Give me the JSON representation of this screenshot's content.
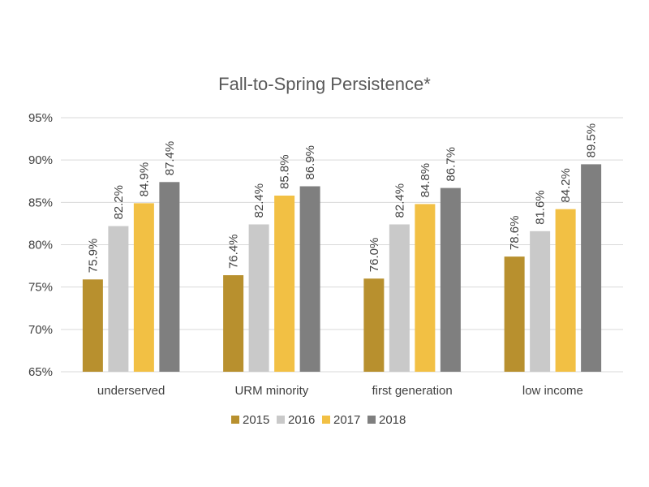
{
  "chart_data": {
    "type": "bar",
    "title": "Fall-to-Spring Persistence*",
    "xlabel": "",
    "ylabel": "",
    "ylim": [
      65,
      95
    ],
    "y_ticks": [
      "65%",
      "70%",
      "75%",
      "80%",
      "85%",
      "90%",
      "95%"
    ],
    "y_tick_values": [
      65,
      70,
      75,
      80,
      85,
      90,
      95
    ],
    "grid": true,
    "legend_position": "bottom",
    "categories": [
      "underserved",
      "URM minority",
      "first generation",
      "low income"
    ],
    "series": [
      {
        "name": "2015",
        "color": "#B8902E",
        "values": [
          75.9,
          76.4,
          76.0,
          78.6
        ],
        "labels": [
          "75.9%",
          "76.4%",
          "76.0%",
          "78.6%"
        ]
      },
      {
        "name": "2016",
        "color": "#C9C9C9",
        "values": [
          82.2,
          82.4,
          82.4,
          81.6
        ],
        "labels": [
          "82.2%",
          "82.4%",
          "82.4%",
          "81.6%"
        ]
      },
      {
        "name": "2017",
        "color": "#F2C044",
        "values": [
          84.9,
          85.8,
          84.8,
          84.2
        ],
        "labels": [
          "84.9%",
          "85.8%",
          "84.8%",
          "84.2%"
        ]
      },
      {
        "name": "2018",
        "color": "#7F7F7F",
        "values": [
          87.4,
          86.9,
          86.7,
          89.5
        ],
        "labels": [
          "87.4%",
          "86.9%",
          "86.7%",
          "89.5%"
        ]
      }
    ]
  }
}
